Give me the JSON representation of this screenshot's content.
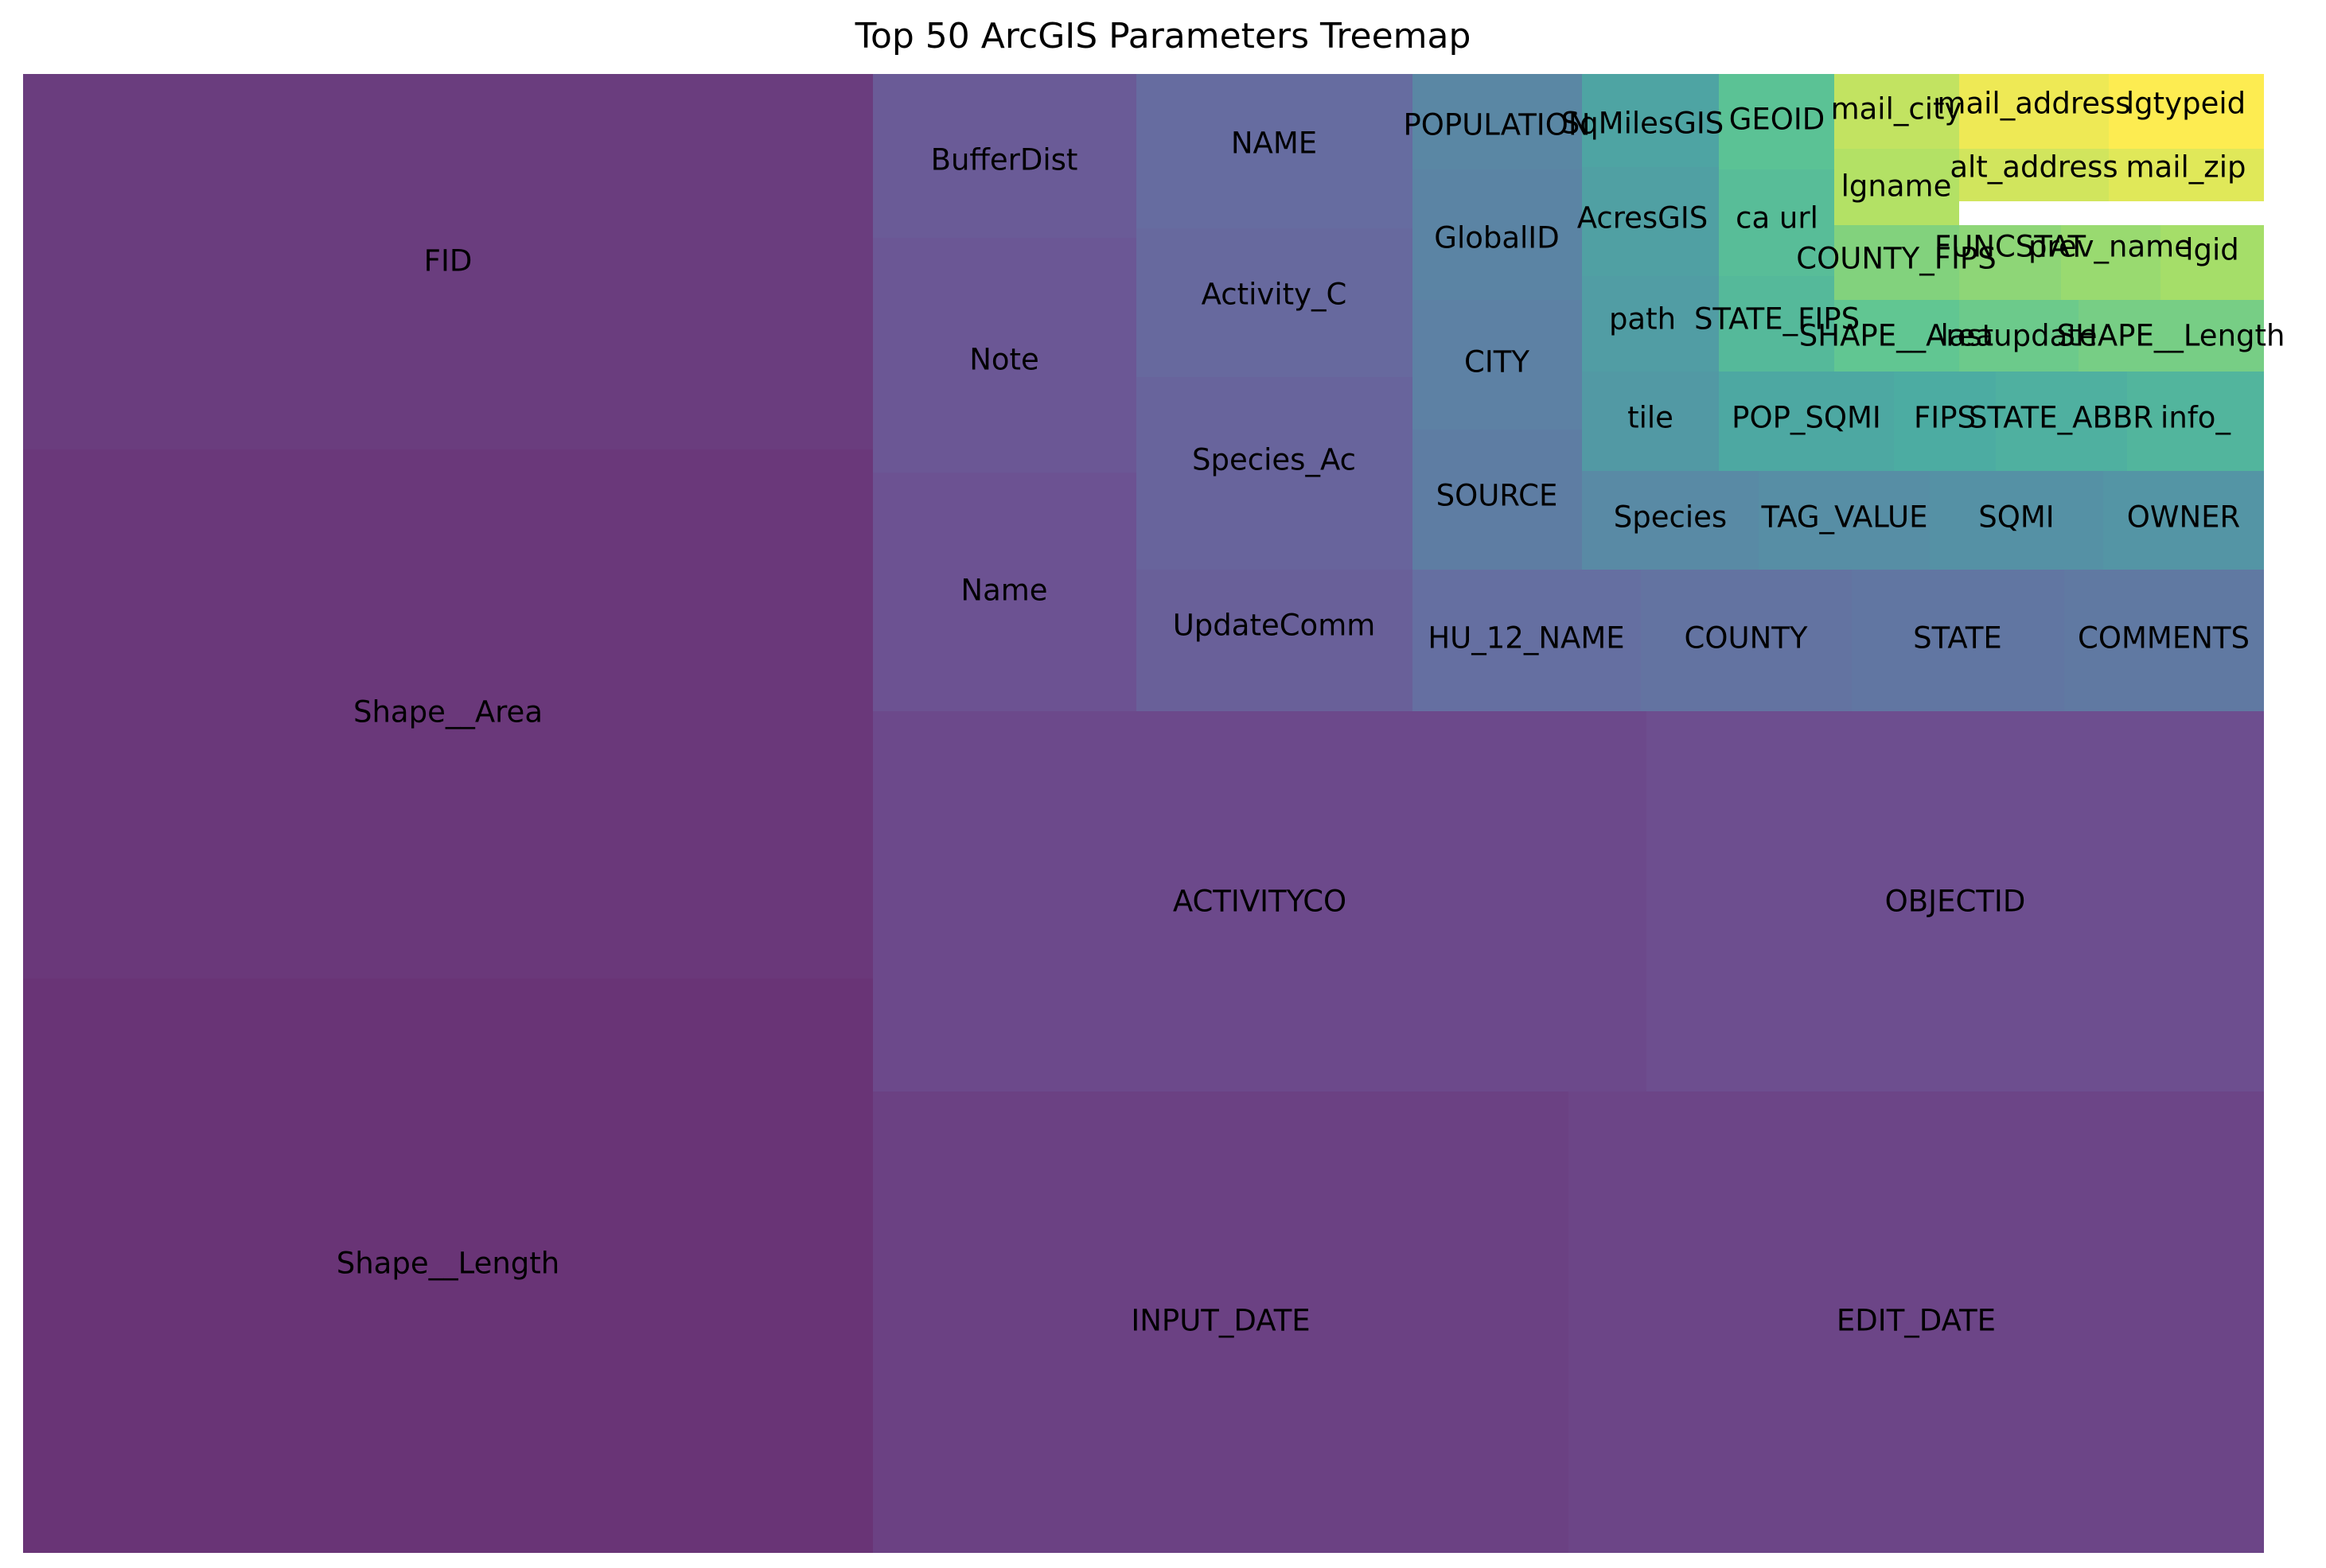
{
  "chart_data": {
    "type": "treemap",
    "title": "Top 50 ArcGIS Parameters Treemap",
    "colormap": "viridis",
    "items": [
      {
        "label": "Shape__Length"
      },
      {
        "label": "Shape__Area"
      },
      {
        "label": "FID"
      },
      {
        "label": "INPUT_DATE"
      },
      {
        "label": "EDIT_DATE"
      },
      {
        "label": "ACTIVITYCO"
      },
      {
        "label": "OBJECTID"
      },
      {
        "label": "Name"
      },
      {
        "label": "Note"
      },
      {
        "label": "BufferDist"
      },
      {
        "label": "UpdateComm"
      },
      {
        "label": "Species_Ac"
      },
      {
        "label": "Activity_C"
      },
      {
        "label": "NAME"
      },
      {
        "label": "HU_12_NAME"
      },
      {
        "label": "COUNTY"
      },
      {
        "label": "STATE"
      },
      {
        "label": "COMMENTS"
      },
      {
        "label": "SOURCE"
      },
      {
        "label": "CITY"
      },
      {
        "label": "GlobalID"
      },
      {
        "label": "POPULATION"
      },
      {
        "label": "Species"
      },
      {
        "label": "TAG_VALUE"
      },
      {
        "label": "SQMI"
      },
      {
        "label": "OWNER"
      },
      {
        "label": "tile"
      },
      {
        "label": "path"
      },
      {
        "label": "AcresGIS"
      },
      {
        "label": "SqMilesGIS"
      },
      {
        "label": "POP_SQMI"
      },
      {
        "label": "FIPS"
      },
      {
        "label": "STATE_ABBR"
      },
      {
        "label": "info_"
      },
      {
        "label": "STATE_FIPS"
      },
      {
        "label": "ca url"
      },
      {
        "label": "GEOID"
      },
      {
        "label": "SHAPE__Area"
      },
      {
        "label": "lastupdate"
      },
      {
        "label": "SHAPE__Length"
      },
      {
        "label": "COUNTY_FIPS"
      },
      {
        "label": "FUNCSTAT"
      },
      {
        "label": "prev_name"
      },
      {
        "label": "lgid"
      },
      {
        "label": "lgname"
      },
      {
        "label": "mail_city"
      },
      {
        "label": "alt_address"
      },
      {
        "label": "mail_zip"
      },
      {
        "label": "mail_address"
      },
      {
        "label": "lgtypeid"
      }
    ]
  }
}
